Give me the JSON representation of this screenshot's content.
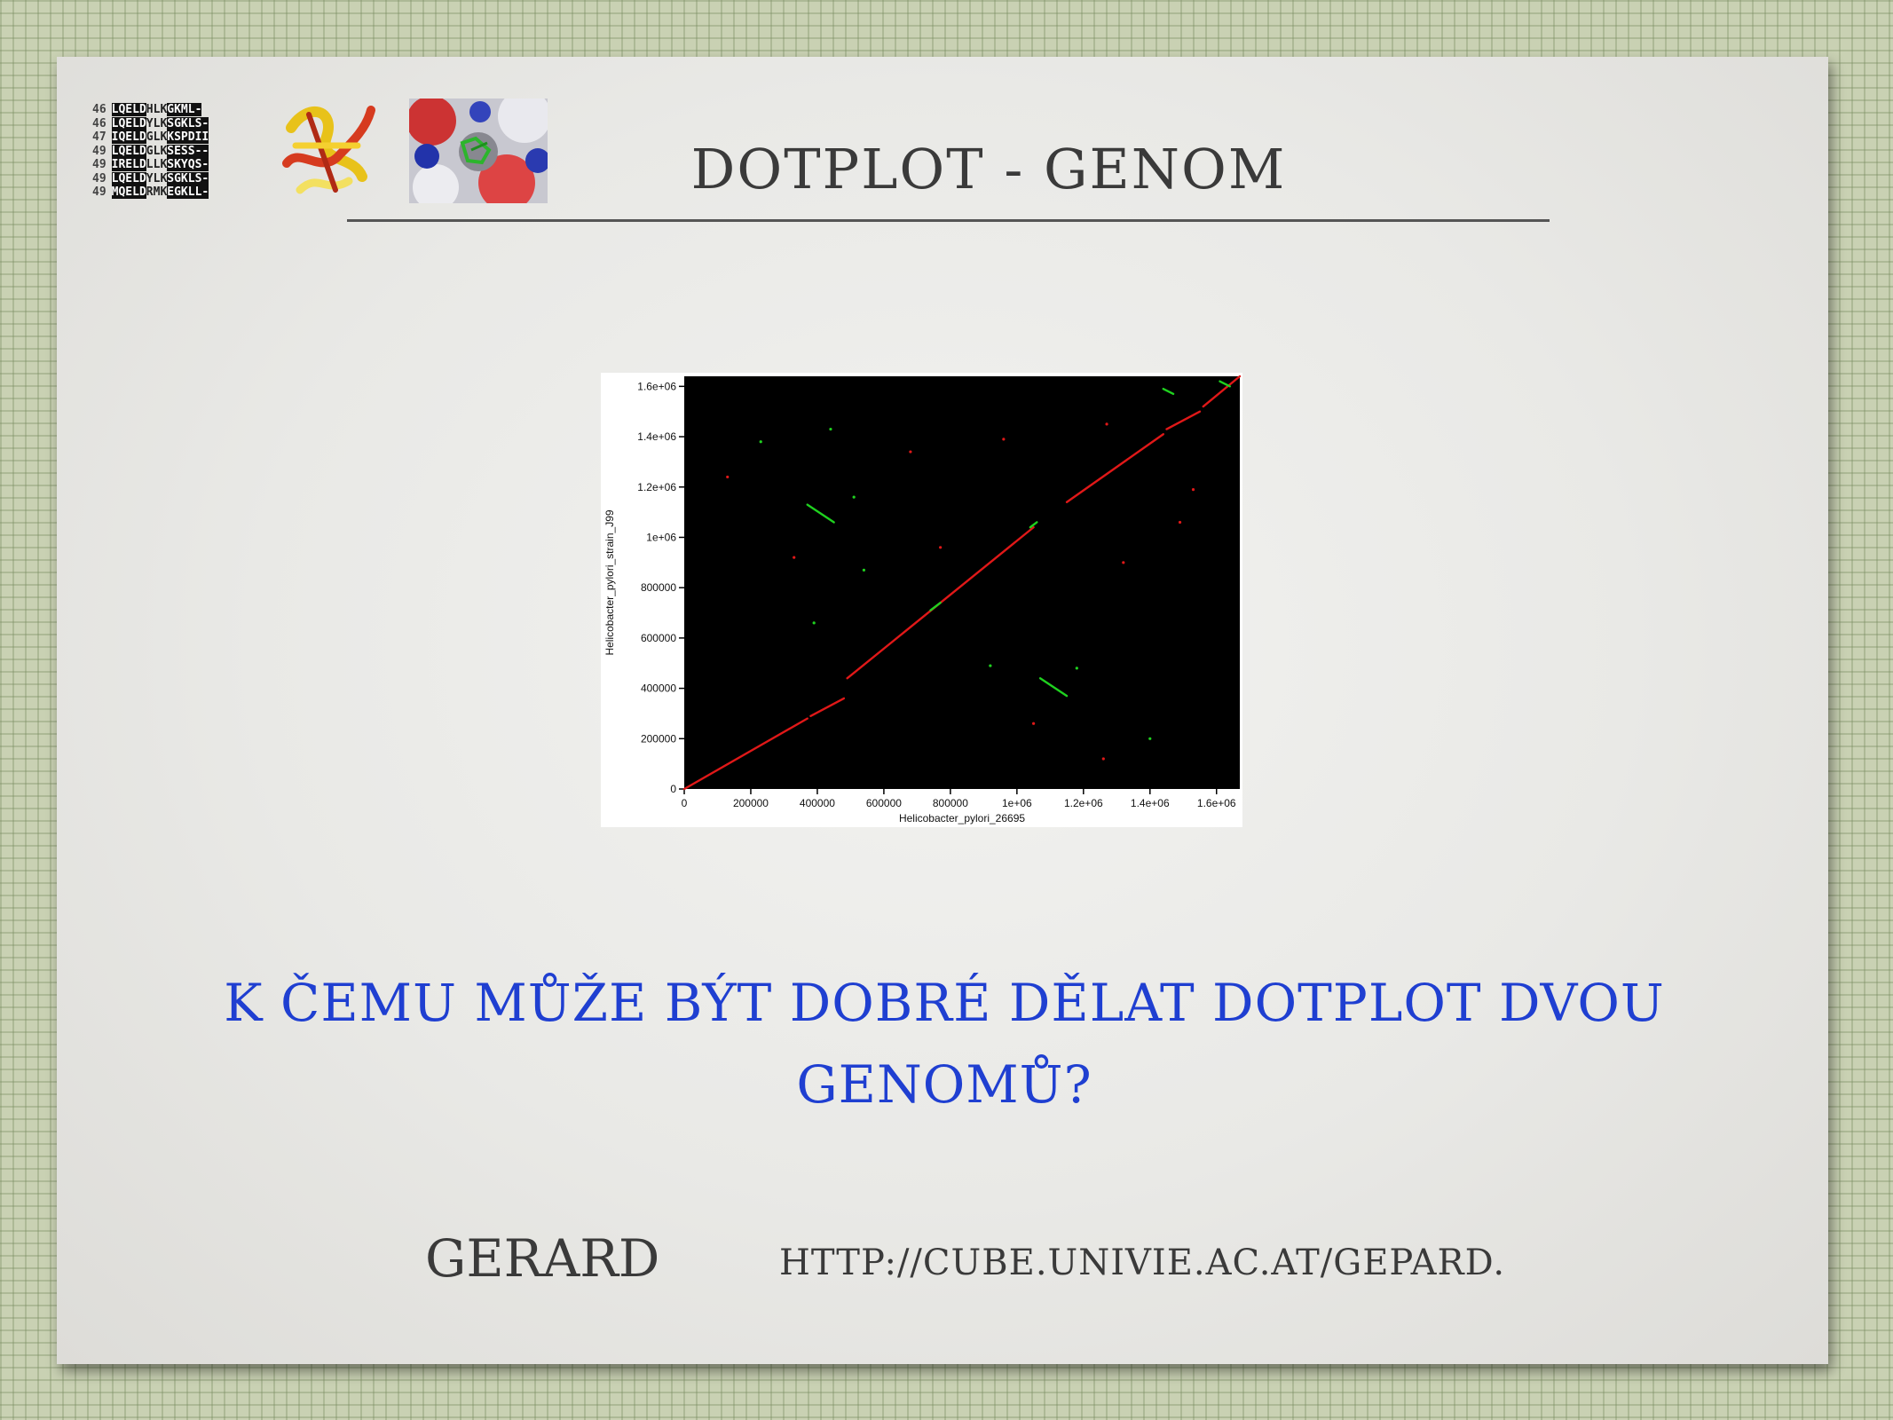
{
  "slide": {
    "title": "DOTPLOT - GENOM",
    "question": "K ČEMU MŮŽE BÝT DOBRÉ DĚLAT DOTPLOT DVOU GENOMŮ?",
    "footer_tool": "GERARD",
    "footer_url": "HTTP://CUBE.UNIVIE.AC.AT/GEPARD."
  },
  "logo_alignment": {
    "rows": [
      {
        "num": "46",
        "seq_a": "LQELD",
        "seq_b": "HLK",
        "seq_c": "GKML-"
      },
      {
        "num": "46",
        "seq_a": "LQELD",
        "seq_b": "YLK",
        "seq_c": "SGKLS-"
      },
      {
        "num": "47",
        "seq_a": "IQELD",
        "seq_b": "GLK",
        "seq_c": "KSPDII"
      },
      {
        "num": "49",
        "seq_a": "LQELD",
        "seq_b": "GLK",
        "seq_c": "SESS--"
      },
      {
        "num": "49",
        "seq_a": "IRELD",
        "seq_b": "LLK",
        "seq_c": "SKYQS-"
      },
      {
        "num": "49",
        "seq_a": "LQELD",
        "seq_b": "YLK",
        "seq_c": "SGKLS-"
      },
      {
        "num": "49",
        "seq_a": "MQELD",
        "seq_b": "RMK",
        "seq_c": "EGKLL-"
      }
    ]
  },
  "chart_data": {
    "type": "scatter",
    "xlabel": "Helicobacter_pylori_26695",
    "ylabel": "Helicobacter_pylori_strain_J99",
    "xlim": [
      0,
      1670000
    ],
    "ylim": [
      0,
      1640000
    ],
    "x_ticks": [
      "0",
      "200000",
      "400000",
      "600000",
      "800000",
      "1e+06",
      "1.2e+06",
      "1.4e+06",
      "1.6e+06"
    ],
    "y_ticks": [
      "0",
      "200000",
      "400000",
      "600000",
      "800000",
      "1e+06",
      "1.2e+06",
      "1.4e+06",
      "1.6e+06"
    ],
    "background": "#000000",
    "series": [
      {
        "color": "#e01818",
        "segments": [
          [
            [
              0,
              0
            ],
            [
              370000,
              280000
            ]
          ],
          [
            [
              380000,
              290000
            ],
            [
              480000,
              360000
            ]
          ],
          [
            [
              490000,
              440000
            ],
            [
              1050000,
              1040000
            ]
          ],
          [
            [
              1150000,
              1140000
            ],
            [
              1440000,
              1410000
            ]
          ],
          [
            [
              1450000,
              1430000
            ],
            [
              1550000,
              1500000
            ]
          ],
          [
            [
              1560000,
              1520000
            ],
            [
              1670000,
              1640000
            ]
          ]
        ]
      },
      {
        "color": "#1fd11f",
        "segments": [
          [
            [
              370000,
              1130000
            ],
            [
              450000,
              1060000
            ]
          ],
          [
            [
              1070000,
              440000
            ],
            [
              1150000,
              370000
            ]
          ],
          [
            [
              1440000,
              1590000
            ],
            [
              1470000,
              1570000
            ]
          ],
          [
            [
              1610000,
              1620000
            ],
            [
              1640000,
              1600000
            ]
          ],
          [
            [
              740000,
              710000
            ],
            [
              770000,
              740000
            ]
          ],
          [
            [
              1040000,
              1040000
            ],
            [
              1060000,
              1060000
            ]
          ]
        ]
      }
    ],
    "dots": [
      {
        "x": 440000,
        "y": 1430000,
        "color": "#1fd11f"
      },
      {
        "x": 510000,
        "y": 1160000,
        "color": "#1fd11f"
      },
      {
        "x": 390000,
        "y": 660000,
        "color": "#1fd11f"
      },
      {
        "x": 540000,
        "y": 870000,
        "color": "#1fd11f"
      },
      {
        "x": 920000,
        "y": 490000,
        "color": "#1fd11f"
      },
      {
        "x": 1180000,
        "y": 480000,
        "color": "#1fd11f"
      },
      {
        "x": 1400000,
        "y": 200000,
        "color": "#1fd11f"
      },
      {
        "x": 230000,
        "y": 1380000,
        "color": "#1fd11f"
      },
      {
        "x": 130000,
        "y": 1240000,
        "color": "#e01818"
      },
      {
        "x": 330000,
        "y": 920000,
        "color": "#e01818"
      },
      {
        "x": 770000,
        "y": 960000,
        "color": "#e01818"
      },
      {
        "x": 960000,
        "y": 1390000,
        "color": "#e01818"
      },
      {
        "x": 1270000,
        "y": 1450000,
        "color": "#e01818"
      },
      {
        "x": 1320000,
        "y": 900000,
        "color": "#e01818"
      },
      {
        "x": 1490000,
        "y": 1060000,
        "color": "#e01818"
      },
      {
        "x": 1050000,
        "y": 260000,
        "color": "#e01818"
      },
      {
        "x": 1260000,
        "y": 120000,
        "color": "#e01818"
      },
      {
        "x": 680000,
        "y": 1340000,
        "color": "#e01818"
      },
      {
        "x": 1530000,
        "y": 1190000,
        "color": "#e01818"
      }
    ]
  },
  "colors": {
    "question_text": "#1f3fd1",
    "title_text": "#3a3a3a"
  }
}
